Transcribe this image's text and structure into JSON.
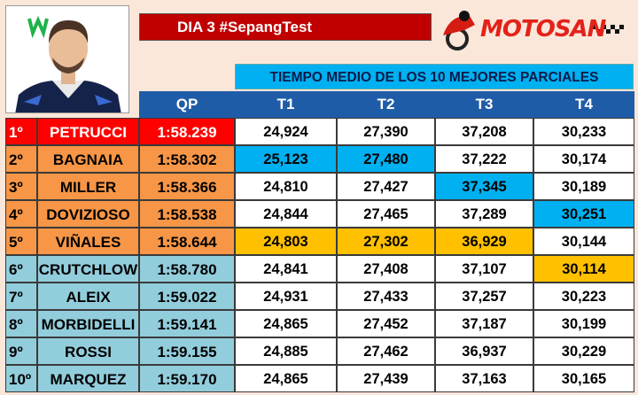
{
  "header": {
    "title": "DIA 3 #SepangTest",
    "logo_text": "MOTOSAN",
    "banner": "TIEMPO MEDIO DE LOS 10 MEJORES PARCIALES"
  },
  "columns": {
    "qp": "QP",
    "t1": "T1",
    "t2": "T2",
    "t3": "T3",
    "t4": "T4"
  },
  "colors": {
    "first": "#ff0000",
    "orange": "#f79646",
    "lightblue": "#92cddc",
    "best": "#00b0f0",
    "second_best": "#ffc000"
  },
  "rows": [
    {
      "pos": "1º",
      "name": "PETRUCCI",
      "qp": "1:58.239",
      "t1": "24,924",
      "t2": "27,390",
      "t3": "37,208",
      "t4": "30,233",
      "group": "first",
      "hl": {}
    },
    {
      "pos": "2º",
      "name": "BAGNAIA",
      "qp": "1:58.302",
      "t1": "25,123",
      "t2": "27,480",
      "t3": "37,222",
      "t4": "30,174",
      "group": "orange",
      "hl": {
        "t1": "best",
        "t2": "best"
      }
    },
    {
      "pos": "3º",
      "name": "MILLER",
      "qp": "1:58.366",
      "t1": "24,810",
      "t2": "27,427",
      "t3": "37,345",
      "t4": "30,189",
      "group": "orange",
      "hl": {
        "t3": "best"
      }
    },
    {
      "pos": "4º",
      "name": "DOVIZIOSO",
      "qp": "1:58.538",
      "t1": "24,844",
      "t2": "27,465",
      "t3": "37,289",
      "t4": "30,251",
      "group": "orange",
      "hl": {
        "t4": "best"
      }
    },
    {
      "pos": "5º",
      "name": "VIÑALES",
      "qp": "1:58.644",
      "t1": "24,803",
      "t2": "27,302",
      "t3": "36,929",
      "t4": "30,144",
      "group": "orange",
      "hl": {
        "t1": "second_best",
        "t2": "second_best",
        "t3": "second_best"
      }
    },
    {
      "pos": "6º",
      "name": "CRUTCHLOW",
      "qp": "1:58.780",
      "t1": "24,841",
      "t2": "27,408",
      "t3": "37,107",
      "t4": "30,114",
      "group": "lightblue",
      "hl": {
        "t4": "second_best"
      }
    },
    {
      "pos": "7º",
      "name": "ALEIX",
      "qp": "1:59.022",
      "t1": "24,931",
      "t2": "27,433",
      "t3": "37,257",
      "t4": "30,223",
      "group": "lightblue",
      "hl": {}
    },
    {
      "pos": "8º",
      "name": "MORBIDELLI",
      "qp": "1:59.141",
      "t1": "24,865",
      "t2": "27,452",
      "t3": "37,187",
      "t4": "30,199",
      "group": "lightblue",
      "hl": {}
    },
    {
      "pos": "9º",
      "name": "ROSSI",
      "qp": "1:59.155",
      "t1": "24,885",
      "t2": "27,462",
      "t3": "36,937",
      "t4": "30,229",
      "group": "lightblue",
      "hl": {}
    },
    {
      "pos": "10º",
      "name": "MARQUEZ",
      "qp": "1:59.170",
      "t1": "24,865",
      "t2": "27,439",
      "t3": "37,163",
      "t4": "30,165",
      "group": "lightblue",
      "hl": {}
    }
  ]
}
